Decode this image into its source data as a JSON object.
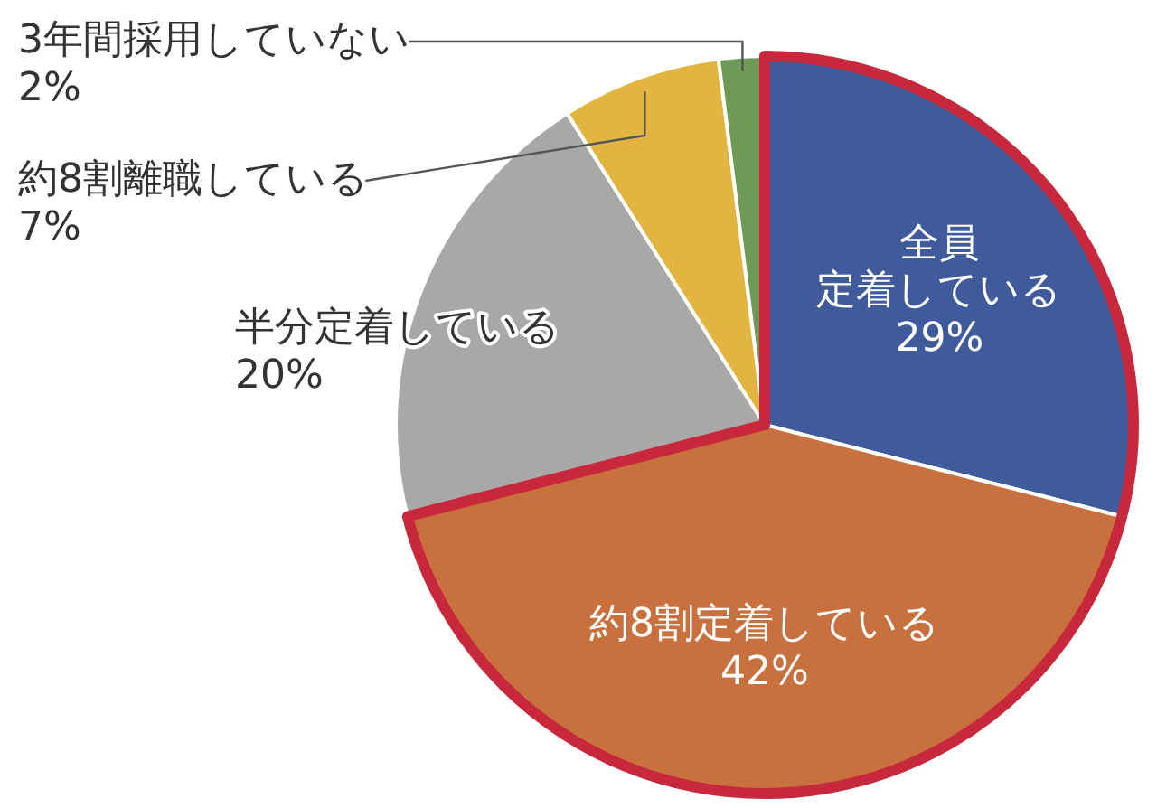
{
  "chart_data": {
    "type": "pie",
    "categories": [
      "全員定着している",
      "約8割定着している",
      "半分定着している",
      "約8割離職している",
      "3年間採用していない"
    ],
    "values": [
      29,
      42,
      20,
      7,
      2
    ],
    "value_labels": [
      "29%",
      "42%",
      "20%",
      "7%",
      "2%"
    ],
    "colors": [
      "#3f5b9c",
      "#c8703e",
      "#a8a8a8",
      "#e2b541",
      "#6f9a55"
    ]
  }
}
